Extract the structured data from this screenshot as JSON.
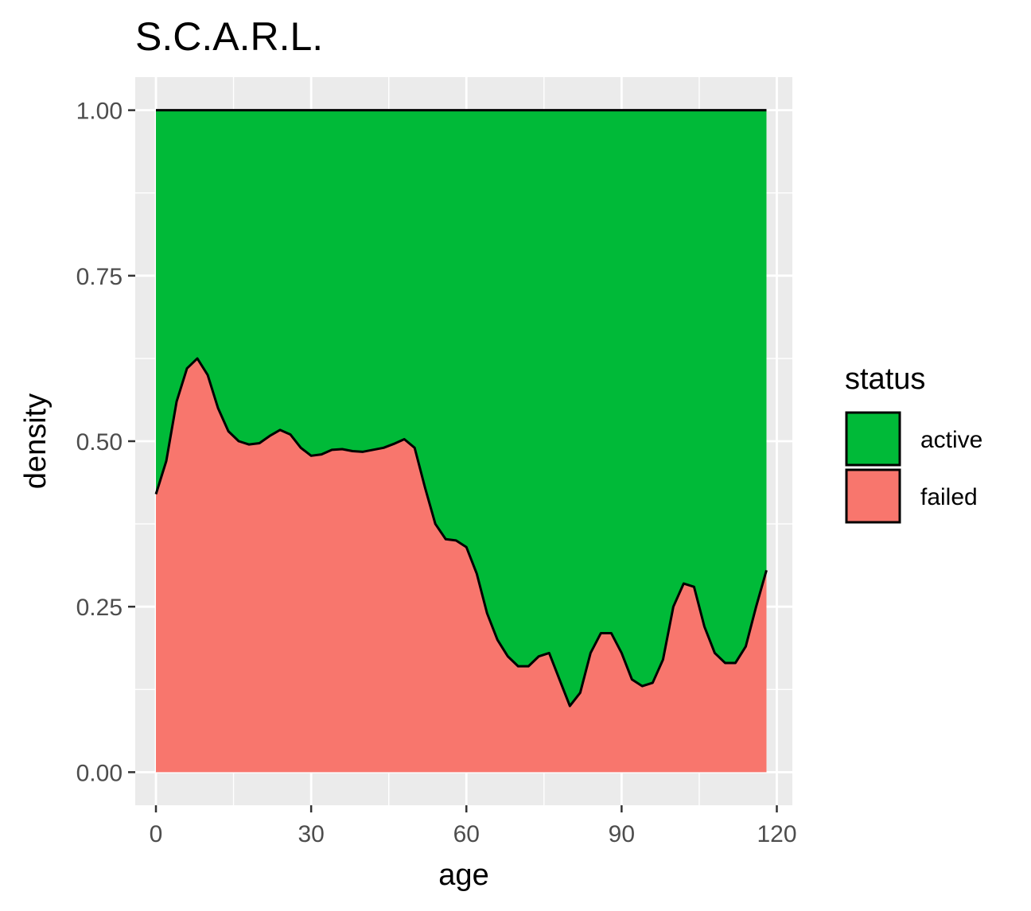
{
  "chart_data": {
    "type": "area",
    "title": "S.C.A.R.L.",
    "xlabel": "age",
    "ylabel": "density",
    "xlim": [
      -4,
      123
    ],
    "ylim": [
      -0.05,
      1.05
    ],
    "x_ticks": [
      0,
      30,
      60,
      90,
      120
    ],
    "y_ticks": [
      0.0,
      0.25,
      0.5,
      0.75,
      1.0
    ],
    "x_tick_labels": [
      "0",
      "30",
      "60",
      "90",
      "120"
    ],
    "y_tick_labels": [
      "0.00",
      "0.25",
      "0.50",
      "0.75",
      "1.00"
    ],
    "grid": true,
    "stacked_fill": true,
    "legend": {
      "title": "status",
      "position": "right",
      "entries": [
        {
          "label": "active",
          "color": "#00BA38"
        },
        {
          "label": "failed",
          "color": "#F8766D"
        }
      ]
    },
    "x": [
      0,
      2,
      4,
      6,
      8,
      10,
      12,
      14,
      16,
      18,
      20,
      22,
      24,
      26,
      28,
      30,
      32,
      34,
      36,
      38,
      40,
      42,
      44,
      46,
      48,
      50,
      52,
      54,
      56,
      58,
      60,
      62,
      64,
      66,
      68,
      70,
      72,
      74,
      76,
      78,
      80,
      82,
      84,
      86,
      88,
      90,
      92,
      94,
      96,
      98,
      100,
      102,
      104,
      106,
      108,
      110,
      112,
      114,
      116,
      118
    ],
    "series": [
      {
        "name": "failed",
        "color": "#F8766D",
        "values": [
          0.42,
          0.47,
          0.56,
          0.61,
          0.625,
          0.6,
          0.55,
          0.515,
          0.5,
          0.495,
          0.497,
          0.508,
          0.517,
          0.51,
          0.49,
          0.478,
          0.48,
          0.487,
          0.488,
          0.485,
          0.484,
          0.487,
          0.49,
          0.496,
          0.503,
          0.49,
          0.43,
          0.375,
          0.352,
          0.35,
          0.34,
          0.3,
          0.24,
          0.2,
          0.175,
          0.16,
          0.16,
          0.175,
          0.18,
          0.14,
          0.1,
          0.12,
          0.18,
          0.21,
          0.21,
          0.18,
          0.14,
          0.13,
          0.135,
          0.17,
          0.25,
          0.285,
          0.28,
          0.22,
          0.18,
          0.165,
          0.165,
          0.19,
          0.25,
          0.305
        ]
      },
      {
        "name": "active",
        "color": "#00BA38",
        "values": [
          0.58,
          0.53,
          0.44,
          0.39,
          0.375,
          0.4,
          0.45,
          0.485,
          0.5,
          0.505,
          0.503,
          0.492,
          0.483,
          0.49,
          0.51,
          0.522,
          0.52,
          0.513,
          0.512,
          0.515,
          0.516,
          0.513,
          0.51,
          0.504,
          0.497,
          0.51,
          0.57,
          0.625,
          0.648,
          0.65,
          0.66,
          0.7,
          0.76,
          0.8,
          0.825,
          0.84,
          0.84,
          0.825,
          0.82,
          0.86,
          0.9,
          0.88,
          0.82,
          0.79,
          0.79,
          0.82,
          0.86,
          0.87,
          0.865,
          0.83,
          0.75,
          0.715,
          0.72,
          0.78,
          0.82,
          0.835,
          0.835,
          0.81,
          0.75,
          0.695
        ]
      }
    ]
  }
}
